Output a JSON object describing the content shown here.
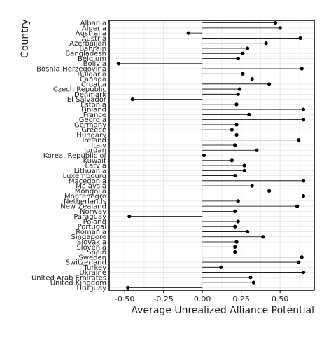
{
  "chart_data": {
    "type": "lollipop",
    "title": "",
    "xlabel": "Average Unrealized Alliance Potential",
    "ylabel": "Country",
    "xlim": [
      -0.6,
      0.72
    ],
    "x_ticks": [
      "-0.50",
      "-0.25",
      "0.00",
      "0.25",
      "0.50"
    ],
    "x_tick_values": [
      -0.5,
      -0.25,
      0.0,
      0.25,
      0.5
    ],
    "grid": true,
    "legend": "none",
    "colors": {
      "point": "#000000",
      "stem": "#000000",
      "grid": "#e6e6e6",
      "panel_border": "#000000"
    },
    "categories": [
      "Albania",
      "Algeria",
      "Australia",
      "Austria",
      "Azerbaijan",
      "Bahrain",
      "Bangladesh",
      "Belgium",
      "Bolivia",
      "Bosnia-Herzegovina",
      "Bulgaria",
      "Canada",
      "Croatia",
      "Czech Republic",
      "Denmark",
      "El Salvador",
      "Estonia",
      "Finland",
      "France",
      "Georgia",
      "Germany",
      "Greece",
      "Hungary",
      "Ireland",
      "Italy",
      "Jordan",
      "Korea, Republic of",
      "Kuwait",
      "Latvia",
      "Lithuania",
      "Luxembourg",
      "Macedonia",
      "Malaysia",
      "Mongolia",
      "Montenegro",
      "Netherlands",
      "New Zealand",
      "Norway",
      "Paraguay",
      "Poland",
      "Portugal",
      "Romania",
      "Singapore",
      "Slovakia",
      "Slovenia",
      "Spain",
      "Sweden",
      "Switzerland",
      "Turkey",
      "Ukraine",
      "United Arab Emirates",
      "United Kingdom",
      "Uruguay"
    ],
    "values": [
      0.47,
      0.5,
      -0.09,
      0.63,
      0.41,
      0.29,
      0.26,
      0.23,
      -0.54,
      0.64,
      0.26,
      0.32,
      0.43,
      0.24,
      0.23,
      -0.45,
      0.22,
      0.65,
      0.3,
      0.65,
      0.22,
      0.19,
      0.22,
      0.62,
      0.21,
      0.35,
      0.01,
      0.19,
      0.27,
      0.27,
      0.21,
      0.65,
      0.32,
      0.43,
      0.65,
      0.23,
      0.61,
      0.21,
      -0.47,
      0.23,
      0.21,
      0.29,
      0.39,
      0.22,
      0.21,
      0.21,
      0.64,
      0.62,
      0.12,
      0.65,
      0.31,
      0.33,
      -0.48
    ]
  }
}
